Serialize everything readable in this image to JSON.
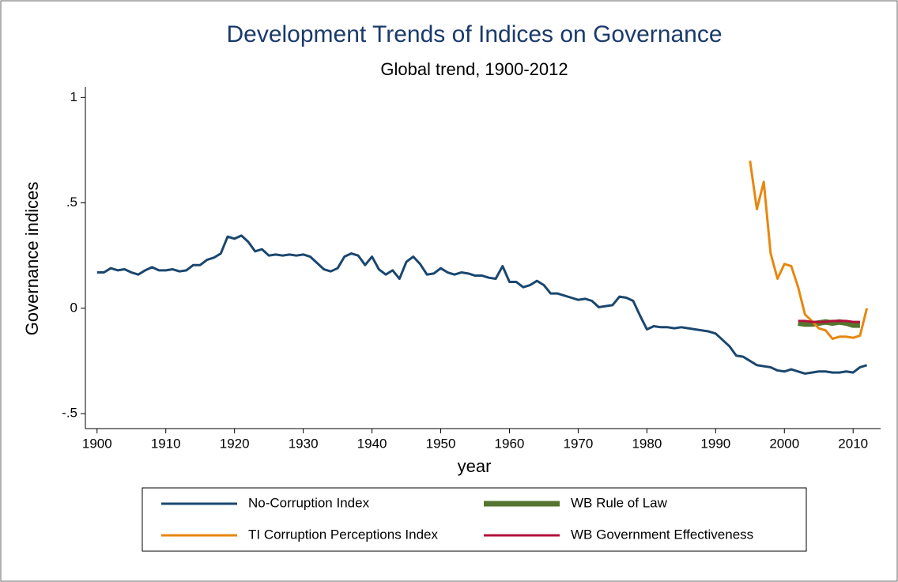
{
  "chart_data": {
    "type": "line",
    "title": "Development Trends of Indices on Governance",
    "subtitle": "Global trend, 1900-2012",
    "x_label": "year",
    "y_label": "Governance indices",
    "xlim": [
      1898.3,
      2014
    ],
    "ylim": [
      -0.571,
      1.05
    ],
    "xticks": [
      1900,
      1910,
      1920,
      1930,
      1940,
      1950,
      1960,
      1970,
      1980,
      1990,
      2000,
      2010
    ],
    "yticks": [
      {
        "value": -0.5,
        "label": "-.5"
      },
      0,
      {
        "value": 0.5,
        "label": ".5"
      },
      1
    ],
    "grid": false,
    "legend_position": "bottom",
    "legend_columns": 2,
    "series": [
      {
        "name": "No-Corruption Index",
        "color": "#1a476f",
        "line_width": 3,
        "x": [
          1900,
          1901,
          1902,
          1903,
          1904,
          1905,
          1906,
          1907,
          1908,
          1909,
          1910,
          1911,
          1912,
          1913,
          1914,
          1915,
          1916,
          1917,
          1918,
          1919,
          1920,
          1921,
          1922,
          1923,
          1924,
          1925,
          1926,
          1927,
          1928,
          1929,
          1930,
          1931,
          1932,
          1933,
          1934,
          1935,
          1936,
          1937,
          1938,
          1939,
          1940,
          1941,
          1942,
          1943,
          1944,
          1945,
          1946,
          1947,
          1948,
          1949,
          1950,
          1951,
          1952,
          1953,
          1954,
          1955,
          1956,
          1957,
          1958,
          1959,
          1960,
          1961,
          1962,
          1963,
          1964,
          1965,
          1966,
          1967,
          1968,
          1969,
          1970,
          1971,
          1972,
          1973,
          1974,
          1975,
          1976,
          1977,
          1978,
          1979,
          1980,
          1981,
          1982,
          1983,
          1984,
          1985,
          1986,
          1987,
          1988,
          1989,
          1990,
          1991,
          1992,
          1993,
          1994,
          1995,
          1996,
          1997,
          1998,
          1999,
          2000,
          2001,
          2002,
          2003,
          2004,
          2005,
          2006,
          2007,
          2008,
          2009,
          2010,
          2011,
          2012
        ],
        "values": [
          0.17,
          0.17,
          0.19,
          0.18,
          0.185,
          0.17,
          0.16,
          0.18,
          0.195,
          0.18,
          0.18,
          0.185,
          0.175,
          0.18,
          0.205,
          0.205,
          0.23,
          0.24,
          0.26,
          0.34,
          0.33,
          0.345,
          0.315,
          0.27,
          0.28,
          0.25,
          0.255,
          0.25,
          0.255,
          0.25,
          0.255,
          0.245,
          0.215,
          0.185,
          0.175,
          0.19,
          0.245,
          0.26,
          0.25,
          0.205,
          0.245,
          0.185,
          0.16,
          0.18,
          0.14,
          0.22,
          0.245,
          0.21,
          0.16,
          0.165,
          0.19,
          0.17,
          0.16,
          0.17,
          0.165,
          0.155,
          0.155,
          0.145,
          0.14,
          0.2,
          0.125,
          0.125,
          0.1,
          0.11,
          0.13,
          0.11,
          0.07,
          0.07,
          0.06,
          0.05,
          0.04,
          0.045,
          0.035,
          0.005,
          0.01,
          0.015,
          0.055,
          0.05,
          0.035,
          -0.035,
          -0.1,
          -0.085,
          -0.09,
          -0.09,
          -0.095,
          -0.09,
          -0.095,
          -0.1,
          -0.105,
          -0.11,
          -0.12,
          -0.15,
          -0.18,
          -0.225,
          -0.23,
          -0.25,
          -0.27,
          -0.275,
          -0.28,
          -0.295,
          -0.3,
          -0.29,
          -0.3,
          -0.31,
          -0.305,
          -0.3,
          -0.3,
          -0.305,
          -0.305,
          -0.3,
          -0.305,
          -0.28,
          -0.27
        ]
      },
      {
        "name": "WB Rule of Law",
        "color": "#55752f",
        "line_width": 7,
        "x": [
          2002,
          2003,
          2004,
          2005,
          2006,
          2007,
          2008,
          2009,
          2010,
          2011
        ],
        "values": [
          -0.07,
          -0.075,
          -0.075,
          -0.07,
          -0.065,
          -0.07,
          -0.065,
          -0.07,
          -0.08,
          -0.08
        ]
      },
      {
        "name": "TI Corruption Perceptions Index",
        "color": "#e8870e",
        "line_width": 3,
        "x": [
          1995,
          1996,
          1997,
          1998,
          1999,
          2000,
          2001,
          2002,
          2003,
          2004,
          2005,
          2006,
          2007,
          2008,
          2009,
          2010,
          2011,
          2012
        ],
        "values": [
          0.7,
          0.47,
          0.6,
          0.26,
          0.14,
          0.21,
          0.2,
          0.1,
          -0.03,
          -0.06,
          -0.095,
          -0.105,
          -0.145,
          -0.135,
          -0.135,
          -0.14,
          -0.13,
          0.0
        ]
      },
      {
        "name": "WB Government Effectiveness",
        "color": "#b5103a",
        "line_width": 3,
        "x": [
          2002,
          2003,
          2004,
          2005,
          2006,
          2007,
          2008,
          2009,
          2010,
          2011
        ],
        "values": [
          -0.06,
          -0.06,
          -0.065,
          -0.065,
          -0.065,
          -0.06,
          -0.06,
          -0.06,
          -0.065,
          -0.065
        ]
      }
    ]
  }
}
